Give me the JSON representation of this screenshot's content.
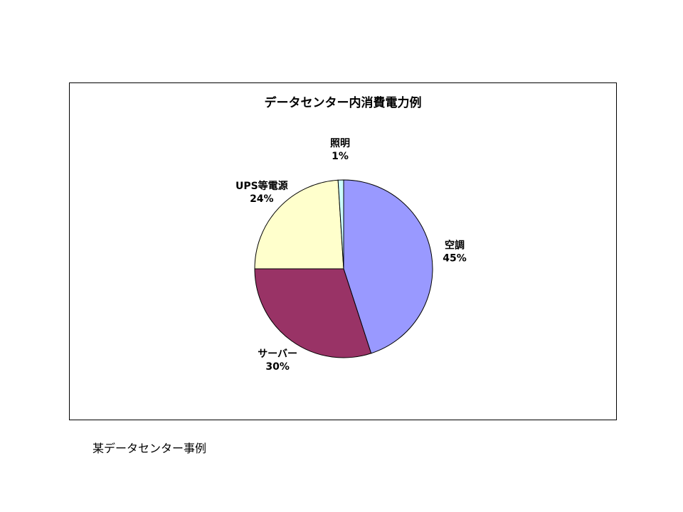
{
  "chart_data": {
    "type": "pie",
    "title": "データセンター内消費電力例",
    "slices": [
      {
        "label": "空調",
        "value": 45,
        "value_label": "45%",
        "color": "#9999ff"
      },
      {
        "label": "サーバー",
        "value": 30,
        "value_label": "30%",
        "color": "#993366"
      },
      {
        "label": "UPS等電源",
        "value": 24,
        "value_label": "24%",
        "color": "#ffffcc"
      },
      {
        "label": "照明",
        "value": 1,
        "value_label": "1%",
        "color": "#ccffff"
      }
    ],
    "start_angle_deg": 0,
    "direction": "clockwise",
    "slice_border_color": "#000000"
  },
  "caption": "某データセンター事例"
}
